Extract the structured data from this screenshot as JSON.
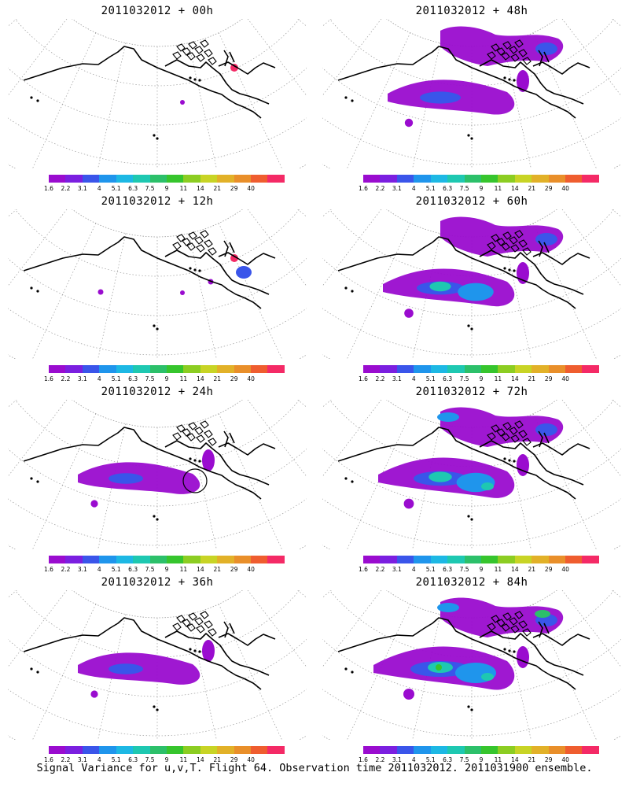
{
  "caption": "Signal Variance for u,v,T. Flight 64. Observation time 2011032012. 2011031900 ensemble.",
  "colorbar": {
    "labels": [
      "1.6",
      "2.2",
      "3.1",
      "4",
      "5.1",
      "6.3",
      "7.5",
      "9",
      "11",
      "14",
      "21",
      "29",
      "40"
    ],
    "colors": [
      "#9a0ccf",
      "#7b1fe0",
      "#3a55ea",
      "#1f95ec",
      "#1db8e4",
      "#1ec8b1",
      "#2cc06a",
      "#36c52d",
      "#8ccd22",
      "#c8d425",
      "#e2b128",
      "#e98f2a",
      "#ef5d2f",
      "#f42a66"
    ]
  },
  "panels": [
    {
      "title": "2011032012 + 00h",
      "intensity": 0
    },
    {
      "title": "2011032012 + 48h",
      "intensity": 2
    },
    {
      "title": "2011032012 + 12h",
      "intensity": 0
    },
    {
      "title": "2011032012 + 60h",
      "intensity": 3
    },
    {
      "title": "2011032012 + 24h",
      "intensity": 1
    },
    {
      "title": "2011032012 + 72h",
      "intensity": 4
    },
    {
      "title": "2011032012 + 36h",
      "intensity": 1
    },
    {
      "title": "2011032012 + 84h",
      "intensity": 5
    }
  ]
}
